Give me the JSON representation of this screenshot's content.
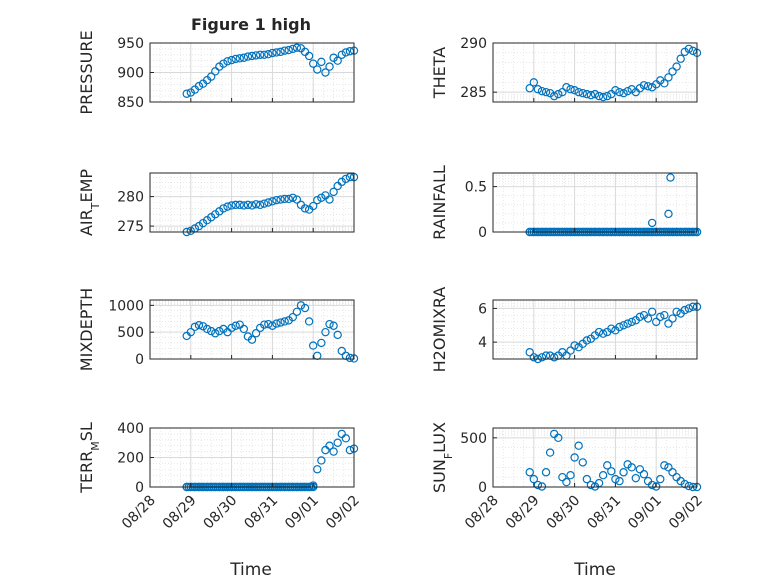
{
  "figure": {
    "title": "Figure 1 high",
    "xlabel": "Time"
  },
  "style": {
    "marker_color": "#0072bd",
    "grid_color": "#d9d9d9",
    "axis_color": "#262626"
  },
  "chart_data": [
    {
      "type": "scatter",
      "id": "pressure",
      "ylabel": "PRESSURE",
      "ylim": [
        850,
        950
      ],
      "yticks": [
        850,
        900,
        950
      ],
      "ytick_labels": [
        "850",
        "900",
        "950"
      ],
      "xlim": [
        "08/28",
        "09/02"
      ],
      "xticks": [
        "08/28",
        "08/29",
        "08/30",
        "08/31",
        "09/01",
        "09/02"
      ],
      "grid": "on",
      "series": [
        {
          "x": [
            "08/28 21:36",
            "08/29 00:00",
            "08/29 02:24",
            "08/29 04:48",
            "08/29 07:12",
            "08/29 09:36",
            "08/29 12:00",
            "08/29 14:24",
            "08/29 16:48",
            "08/29 19:12",
            "08/29 21:36",
            "08/30 00:00",
            "08/30 02:24",
            "08/30 04:48",
            "08/30 07:12",
            "08/30 09:36",
            "08/30 12:00",
            "08/30 14:24",
            "08/30 16:48",
            "08/30 19:12",
            "08/30 21:36",
            "08/31 00:00",
            "08/31 02:24",
            "08/31 04:48",
            "08/31 07:12",
            "08/31 09:36",
            "08/31 12:00",
            "08/31 14:24",
            "08/31 16:48",
            "08/31 19:12",
            "08/31 21:36",
            "09/01 00:00",
            "09/01 02:24",
            "09/01 04:48",
            "09/01 07:12",
            "09/01 09:36",
            "09/01 12:00",
            "09/01 14:24",
            "09/01 16:48",
            "09/01 19:12",
            "09/01 21:36",
            "09/02 00:00"
          ],
          "y": [
            864,
            866,
            871,
            877,
            881,
            887,
            893,
            902,
            910,
            915,
            919,
            921,
            923,
            924,
            925,
            927,
            928,
            929,
            930,
            930,
            931,
            933,
            934,
            935,
            937,
            938,
            940,
            942,
            941,
            935,
            928,
            915,
            905,
            918,
            900,
            910,
            925,
            920,
            930,
            934,
            936,
            937
          ]
        }
      ]
    },
    {
      "type": "scatter",
      "id": "theta",
      "ylabel": "THETA",
      "ylim": [
        284,
        290
      ],
      "yticks": [
        285,
        290
      ],
      "ytick_labels": [
        "285",
        "290"
      ],
      "xlim": [
        "08/28",
        "09/02"
      ],
      "grid": "on",
      "series": [
        {
          "x": [
            "08/28 21:36",
            "08/29 00:00",
            "08/29 02:24",
            "08/29 04:48",
            "08/29 07:12",
            "08/29 09:36",
            "08/29 12:00",
            "08/29 14:24",
            "08/29 16:48",
            "08/29 19:12",
            "08/29 21:36",
            "08/30 00:00",
            "08/30 02:24",
            "08/30 04:48",
            "08/30 07:12",
            "08/30 09:36",
            "08/30 12:00",
            "08/30 14:24",
            "08/30 16:48",
            "08/30 19:12",
            "08/30 21:36",
            "08/31 00:00",
            "08/31 02:24",
            "08/31 04:48",
            "08/31 07:12",
            "08/31 09:36",
            "08/31 12:00",
            "08/31 14:24",
            "08/31 16:48",
            "08/31 19:12",
            "08/31 21:36",
            "09/01 00:00",
            "09/01 02:24",
            "09/01 04:48",
            "09/01 07:12",
            "09/01 09:36",
            "09/01 12:00",
            "09/01 14:24",
            "09/01 16:48",
            "09/01 19:12",
            "09/01 21:36",
            "09/02 00:00"
          ],
          "y": [
            285.4,
            286.0,
            285.3,
            285.1,
            285.0,
            284.9,
            284.6,
            284.8,
            285.0,
            285.5,
            285.3,
            285.2,
            285.0,
            284.9,
            284.8,
            284.7,
            284.8,
            284.6,
            284.5,
            284.6,
            284.8,
            285.2,
            285.0,
            284.9,
            285.1,
            285.3,
            285.0,
            285.4,
            285.7,
            285.6,
            285.5,
            285.8,
            286.2,
            285.9,
            286.5,
            287.1,
            287.6,
            288.4,
            289.1,
            289.4,
            289.2,
            289.0
          ]
        }
      ]
    },
    {
      "type": "scatter",
      "id": "air-temp",
      "ylabel": "AIR_TEMP",
      "ylim": [
        274,
        284
      ],
      "yticks": [
        275,
        280
      ],
      "ytick_labels": [
        "275",
        "280"
      ],
      "xlim": [
        "08/28",
        "09/02"
      ],
      "grid": "on",
      "series": [
        {
          "x": [
            "08/28 21:36",
            "08/29 00:00",
            "08/29 02:24",
            "08/29 04:48",
            "08/29 07:12",
            "08/29 09:36",
            "08/29 12:00",
            "08/29 14:24",
            "08/29 16:48",
            "08/29 19:12",
            "08/29 21:36",
            "08/30 00:00",
            "08/30 02:24",
            "08/30 04:48",
            "08/30 07:12",
            "08/30 09:36",
            "08/30 12:00",
            "08/30 14:24",
            "08/30 16:48",
            "08/30 19:12",
            "08/30 21:36",
            "08/31 00:00",
            "08/31 02:24",
            "08/31 04:48",
            "08/31 07:12",
            "08/31 09:36",
            "08/31 12:00",
            "08/31 14:24",
            "08/31 16:48",
            "08/31 19:12",
            "08/31 21:36",
            "09/01 00:00",
            "09/01 02:24",
            "09/01 04:48",
            "09/01 07:12",
            "09/01 09:36",
            "09/01 12:00",
            "09/01 14:24",
            "09/01 16:48",
            "09/01 19:12",
            "09/01 21:36",
            "09/02 00:00"
          ],
          "y": [
            273.9,
            274.2,
            274.6,
            275.0,
            275.5,
            276.0,
            276.5,
            277.0,
            277.5,
            278.0,
            278.3,
            278.5,
            278.6,
            278.6,
            278.5,
            278.6,
            278.5,
            278.7,
            278.6,
            278.8,
            279.0,
            279.2,
            279.4,
            279.5,
            279.6,
            279.6,
            279.8,
            279.5,
            278.6,
            278.0,
            277.8,
            278.4,
            279.4,
            279.8,
            280.2,
            279.5,
            280.8,
            281.8,
            282.5,
            283.0,
            283.3,
            283.3
          ]
        }
      ]
    },
    {
      "type": "scatter",
      "id": "rainfall",
      "ylabel": "RAINFALL",
      "ylim": [
        0,
        0.65
      ],
      "yticks": [
        0,
        0.5
      ],
      "ytick_labels": [
        "0",
        "0.5"
      ],
      "xlim": [
        "08/28",
        "09/02"
      ],
      "grid": "on",
      "series": [
        {
          "x": [
            "08/28 21:36",
            "08/29 00:00",
            "08/29 02:24",
            "08/29 04:48",
            "08/29 07:12",
            "08/29 09:36",
            "08/29 12:00",
            "08/29 14:24",
            "08/29 16:48",
            "08/29 19:12",
            "08/29 21:36",
            "08/30 00:00",
            "08/30 02:24",
            "08/30 04:48",
            "08/30 07:12",
            "08/30 09:36",
            "08/30 12:00",
            "08/30 14:24",
            "08/30 16:48",
            "08/30 19:12",
            "08/30 21:36",
            "08/31 00:00",
            "08/31 02:24",
            "08/31 04:48",
            "08/31 07:12",
            "08/31 09:36",
            "08/31 12:00",
            "08/31 14:24",
            "08/31 16:48",
            "08/31 19:12",
            "08/31 21:36",
            "08/31 21:37",
            "09/01 00:00",
            "09/01 02:24",
            "09/01 04:48",
            "09/01 07:12",
            "09/01 07:13",
            "09/01 08:24",
            "09/01 09:36",
            "09/01 12:00",
            "09/01 14:24",
            "09/01 16:48",
            "09/01 19:12",
            "09/01 21:36",
            "09/02 00:00"
          ],
          "y": [
            0,
            0,
            0,
            0,
            0,
            0,
            0,
            0,
            0,
            0,
            0,
            0,
            0,
            0,
            0,
            0,
            0,
            0,
            0,
            0,
            0,
            0,
            0,
            0,
            0,
            0,
            0,
            0,
            0,
            0,
            0,
            0.1,
            0,
            0,
            0,
            0,
            0.2,
            0.6,
            0,
            0,
            0,
            0,
            0,
            0,
            0
          ]
        }
      ]
    },
    {
      "type": "scatter",
      "id": "mixdepth",
      "ylabel": "MIXDEPTH",
      "ylim": [
        0,
        1100
      ],
      "yticks": [
        0,
        500,
        1000
      ],
      "ytick_labels": [
        "0",
        "500",
        "1000"
      ],
      "xlim": [
        "08/28",
        "09/02"
      ],
      "grid": "on",
      "series": [
        {
          "x": [
            "08/28 21:36",
            "08/29 00:00",
            "08/29 02:24",
            "08/29 04:48",
            "08/29 07:12",
            "08/29 09:36",
            "08/29 12:00",
            "08/29 14:24",
            "08/29 16:48",
            "08/29 19:12",
            "08/29 21:36",
            "08/30 00:00",
            "08/30 02:24",
            "08/30 04:48",
            "08/30 07:12",
            "08/30 09:36",
            "08/30 12:00",
            "08/30 14:24",
            "08/30 16:48",
            "08/30 19:12",
            "08/30 21:36",
            "08/31 00:00",
            "08/31 02:24",
            "08/31 04:48",
            "08/31 07:12",
            "08/31 09:36",
            "08/31 12:00",
            "08/31 14:24",
            "08/31 16:48",
            "08/31 19:12",
            "08/31 21:36",
            "09/01 00:00",
            "09/01 02:24",
            "09/01 04:48",
            "09/01 07:12",
            "09/01 09:36",
            "09/01 12:00",
            "09/01 14:24",
            "09/01 16:48",
            "09/01 19:12",
            "09/01 21:36",
            "09/02 00:00"
          ],
          "y": [
            430,
            500,
            600,
            630,
            610,
            560,
            520,
            480,
            520,
            560,
            500,
            580,
            620,
            640,
            560,
            420,
            360,
            480,
            580,
            640,
            650,
            620,
            660,
            680,
            700,
            720,
            780,
            880,
            1000,
            950,
            700,
            250,
            60,
            300,
            500,
            650,
            620,
            450,
            150,
            60,
            20,
            10
          ]
        }
      ]
    },
    {
      "type": "scatter",
      "id": "h2omixra",
      "ylabel": "H2OMIXRA",
      "ylim": [
        3,
        6.5
      ],
      "yticks": [
        4,
        6
      ],
      "ytick_labels": [
        "4",
        "6"
      ],
      "xlim": [
        "08/28",
        "09/02"
      ],
      "grid": "on",
      "series": [
        {
          "x": [
            "08/28 21:36",
            "08/29 00:00",
            "08/29 02:24",
            "08/29 04:48",
            "08/29 07:12",
            "08/29 09:36",
            "08/29 12:00",
            "08/29 14:24",
            "08/29 16:48",
            "08/29 19:12",
            "08/29 21:36",
            "08/30 00:00",
            "08/30 02:24",
            "08/30 04:48",
            "08/30 07:12",
            "08/30 09:36",
            "08/30 12:00",
            "08/30 14:24",
            "08/30 16:48",
            "08/30 19:12",
            "08/30 21:36",
            "08/31 00:00",
            "08/31 02:24",
            "08/31 04:48",
            "08/31 07:12",
            "08/31 09:36",
            "08/31 12:00",
            "08/31 14:24",
            "08/31 16:48",
            "08/31 19:12",
            "08/31 21:36",
            "09/01 00:00",
            "09/01 02:24",
            "09/01 04:48",
            "09/01 07:12",
            "09/01 09:36",
            "09/01 12:00",
            "09/01 14:24",
            "09/01 16:48",
            "09/01 19:12",
            "09/01 21:36",
            "09/02 00:00"
          ],
          "y": [
            3.4,
            3.1,
            3.0,
            3.1,
            3.2,
            3.2,
            3.1,
            3.2,
            3.4,
            3.2,
            3.5,
            3.8,
            3.7,
            3.9,
            4.1,
            4.2,
            4.4,
            4.6,
            4.5,
            4.6,
            4.8,
            4.7,
            4.9,
            5.0,
            5.1,
            5.2,
            5.3,
            5.5,
            5.6,
            5.4,
            5.8,
            5.2,
            5.5,
            5.6,
            5.1,
            5.4,
            5.8,
            5.7,
            5.9,
            6.0,
            6.1,
            6.1
          ]
        }
      ]
    },
    {
      "type": "scatter",
      "id": "terr-msl",
      "ylabel": "TERR_MSL",
      "ylim": [
        0,
        400
      ],
      "yticks": [
        0,
        200,
        400
      ],
      "ytick_labels": [
        "0",
        "200",
        "400"
      ],
      "xlim": [
        "08/28",
        "09/02"
      ],
      "grid": "on",
      "series": [
        {
          "x": [
            "08/28 21:36",
            "08/29 00:00",
            "08/29 02:24",
            "08/29 04:48",
            "08/29 07:12",
            "08/29 09:36",
            "08/29 12:00",
            "08/29 14:24",
            "08/29 16:48",
            "08/29 19:12",
            "08/29 21:36",
            "08/30 00:00",
            "08/30 02:24",
            "08/30 04:48",
            "08/30 07:12",
            "08/30 09:36",
            "08/30 12:00",
            "08/30 14:24",
            "08/30 16:48",
            "08/30 19:12",
            "08/30 21:36",
            "08/31 00:00",
            "08/31 02:24",
            "08/31 04:48",
            "08/31 07:12",
            "08/31 09:36",
            "08/31 12:00",
            "08/31 14:24",
            "08/31 16:48",
            "08/31 19:12",
            "08/31 21:36",
            "09/01 00:00",
            "09/01 02:24",
            "09/01 04:48",
            "09/01 07:12",
            "09/01 09:36",
            "09/01 12:00",
            "09/01 14:24",
            "09/01 16:48",
            "09/01 19:12",
            "09/01 21:36",
            "09/02 00:00"
          ],
          "y": [
            0,
            0,
            0,
            0,
            0,
            0,
            0,
            0,
            0,
            0,
            0,
            0,
            0,
            0,
            0,
            0,
            0,
            0,
            0,
            0,
            0,
            0,
            0,
            0,
            0,
            0,
            0,
            0,
            0,
            0,
            0,
            10,
            120,
            180,
            250,
            280,
            240,
            300,
            360,
            330,
            250,
            260
          ]
        }
      ]
    },
    {
      "type": "scatter",
      "id": "sun-flux",
      "ylabel": "SUN_FLUX",
      "ylim": [
        0,
        600
      ],
      "yticks": [
        0,
        500
      ],
      "ytick_labels": [
        "0",
        "500"
      ],
      "xlim": [
        "08/28",
        "09/02"
      ],
      "grid": "on",
      "series": [
        {
          "x": [
            "08/28 21:36",
            "08/29 00:00",
            "08/29 02:24",
            "08/29 04:48",
            "08/29 07:12",
            "08/29 09:36",
            "08/29 12:00",
            "08/29 14:24",
            "08/29 16:48",
            "08/29 19:12",
            "08/29 21:36",
            "08/30 00:00",
            "08/30 02:24",
            "08/30 04:48",
            "08/30 07:12",
            "08/30 09:36",
            "08/30 12:00",
            "08/30 14:24",
            "08/30 16:48",
            "08/30 19:12",
            "08/30 21:36",
            "08/31 00:00",
            "08/31 02:24",
            "08/31 04:48",
            "08/31 07:12",
            "08/31 09:36",
            "08/31 12:00",
            "08/31 14:24",
            "08/31 16:48",
            "08/31 19:12",
            "08/31 21:36",
            "09/01 00:00",
            "09/01 02:24",
            "09/01 04:48",
            "09/01 07:12",
            "09/01 09:36",
            "09/01 12:00",
            "09/01 14:24",
            "09/01 16:48",
            "09/01 19:12",
            "09/01 21:36",
            "09/02 00:00"
          ],
          "y": [
            150,
            80,
            20,
            5,
            150,
            350,
            540,
            500,
            100,
            50,
            120,
            300,
            420,
            250,
            80,
            20,
            5,
            40,
            120,
            220,
            160,
            80,
            60,
            150,
            230,
            200,
            90,
            180,
            130,
            60,
            20,
            5,
            80,
            220,
            200,
            150,
            100,
            60,
            30,
            10,
            0,
            0
          ]
        }
      ]
    }
  ]
}
